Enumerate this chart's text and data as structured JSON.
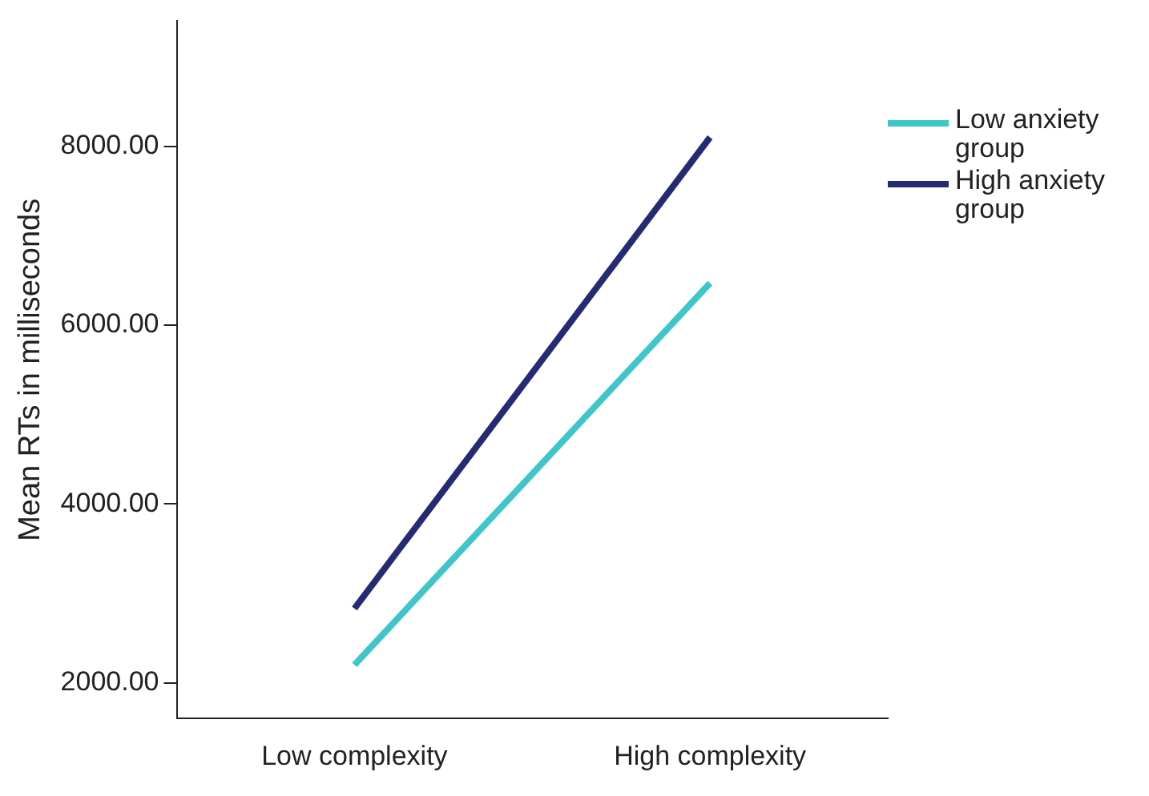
{
  "chart_data": {
    "type": "line",
    "ylabel": "Mean RTs in milliseconds",
    "categories": [
      "Low complexity",
      "High complexity"
    ],
    "series": [
      {
        "name": "Low anxiety group",
        "color": "#3ec6c9",
        "values": [
          2200,
          6470
        ]
      },
      {
        "name": "High anxiety group",
        "color": "#262a72",
        "values": [
          2830,
          8100
        ]
      }
    ],
    "ylim": [
      1600,
      9400
    ],
    "yticks": [
      {
        "value": 2000,
        "label": "2000.00"
      },
      {
        "value": 4000,
        "label": "4000.00"
      },
      {
        "value": 6000,
        "label": "6000.00"
      },
      {
        "value": 8000,
        "label": "8000.00"
      }
    ],
    "grid": false,
    "legend": "right",
    "marker": "none",
    "line_style": "solid"
  }
}
